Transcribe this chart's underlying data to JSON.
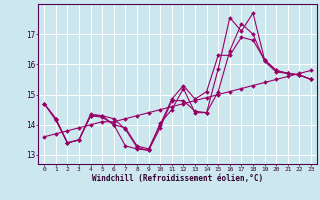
{
  "xlabel": "Windchill (Refroidissement éolien,°C)",
  "bg_color": "#cce8ee",
  "grid_color": "#ffffff",
  "line_color": "#990066",
  "xlim": [
    -0.5,
    23.5
  ],
  "ylim": [
    12.7,
    18.0
  ],
  "yticks": [
    13,
    14,
    15,
    16,
    17
  ],
  "xticks": [
    0,
    1,
    2,
    3,
    4,
    5,
    6,
    7,
    8,
    9,
    10,
    11,
    12,
    13,
    14,
    15,
    16,
    17,
    18,
    19,
    20,
    21,
    22,
    23
  ],
  "series": [
    {
      "x": [
        0,
        1,
        2,
        3,
        4,
        5,
        6,
        7,
        8,
        9,
        10,
        11,
        12,
        13,
        14,
        15,
        16,
        17,
        18,
        19,
        20,
        21,
        22,
        23
      ],
      "y": [
        13.6,
        13.7,
        13.8,
        13.9,
        14.0,
        14.1,
        14.1,
        14.2,
        14.3,
        14.4,
        14.5,
        14.6,
        14.7,
        14.8,
        14.9,
        15.0,
        15.1,
        15.2,
        15.3,
        15.4,
        15.5,
        15.6,
        15.7,
        15.8
      ]
    },
    {
      "x": [
        0,
        1,
        2,
        3,
        4,
        5,
        6,
        7,
        8,
        9,
        10,
        11,
        12,
        13,
        14,
        15,
        16,
        17,
        18,
        19,
        20,
        21,
        22,
        23
      ],
      "y": [
        14.7,
        14.2,
        13.4,
        13.5,
        14.3,
        14.3,
        14.0,
        13.9,
        13.3,
        13.2,
        14.0,
        14.85,
        15.3,
        14.85,
        15.1,
        16.3,
        16.3,
        16.9,
        16.8,
        16.15,
        15.8,
        15.7,
        15.65,
        15.5
      ]
    },
    {
      "x": [
        0,
        1,
        2,
        3,
        4,
        5,
        6,
        7,
        8,
        9,
        10,
        11,
        12,
        13,
        14,
        15,
        16,
        17,
        18,
        19,
        20,
        21,
        22,
        23
      ],
      "y": [
        14.7,
        14.2,
        13.4,
        13.5,
        14.35,
        14.3,
        14.2,
        13.85,
        13.25,
        13.15,
        14.05,
        14.5,
        15.2,
        14.4,
        14.4,
        15.85,
        17.55,
        17.1,
        17.7,
        16.15,
        15.8,
        15.7,
        15.65,
        15.5
      ]
    },
    {
      "x": [
        0,
        1,
        2,
        3,
        4,
        5,
        6,
        7,
        8,
        9,
        10,
        11,
        12,
        13,
        14,
        15,
        16,
        17,
        18,
        19,
        20,
        21,
        22,
        23
      ],
      "y": [
        14.7,
        14.15,
        13.4,
        13.5,
        14.3,
        14.25,
        14.0,
        13.3,
        13.2,
        13.15,
        13.9,
        14.8,
        14.8,
        14.45,
        14.4,
        15.1,
        16.45,
        17.35,
        17.0,
        16.1,
        15.75,
        15.7,
        15.65,
        15.5
      ]
    }
  ]
}
